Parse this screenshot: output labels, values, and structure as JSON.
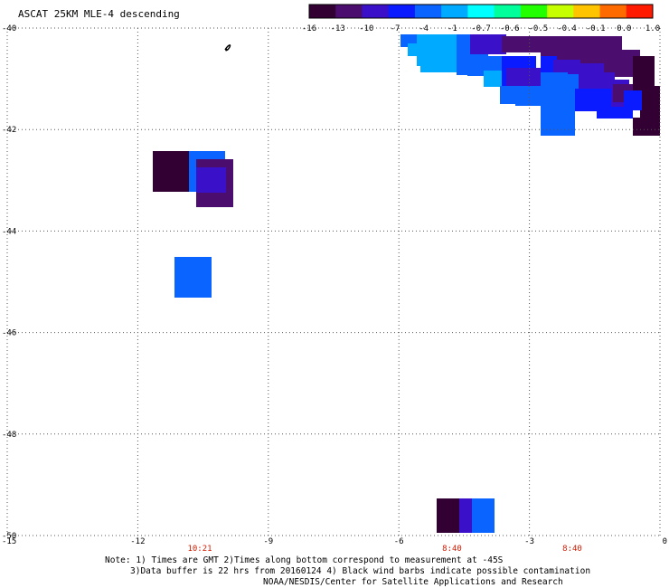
{
  "title": "ASCAT 25KM MLE-4 descending",
  "colorbar": {
    "labels": [
      "-16",
      "-13",
      "-10",
      "-7",
      "-4",
      "-1",
      "-0.7",
      "-0.6",
      "-0.5",
      "-0.4",
      "-0.1",
      "0.0",
      "1.0"
    ],
    "colors": [
      "#330033",
      "#4b0d6e",
      "#3a10c8",
      "#0a1cff",
      "#0a64ff",
      "#00aaff",
      "#00ffff",
      "#00ff9a",
      "#22ff00",
      "#c6ff00",
      "#ffc400",
      "#ff6a00",
      "#ff1a00"
    ]
  },
  "axes": {
    "y_labels": [
      "-40",
      "-42",
      "-44",
      "-46",
      "-48",
      "-50"
    ],
    "x_labels": [
      "-15",
      "-12",
      "-9",
      "-6",
      "-3",
      "0"
    ]
  },
  "times": [
    "10:21",
    "8:40",
    "8:40"
  ],
  "notes": [
    "Note: 1) Times are GMT 2)Times along bottom correspond to measurement at -45S",
    "3)Data buffer is 22 hrs from 20160124 4) Black wind barbs indicate possible contamination",
    "NOAA/NESDIS/Center for Satellite Applications and Research"
  ],
  "cell_colors": {
    "darkest": "#330033",
    "dark_purple": "#4b0d6e",
    "violet": "#3a10c8",
    "blue": "#0a1cff",
    "mid_blue": "#0a64ff",
    "light_blue": "#00aaff"
  }
}
